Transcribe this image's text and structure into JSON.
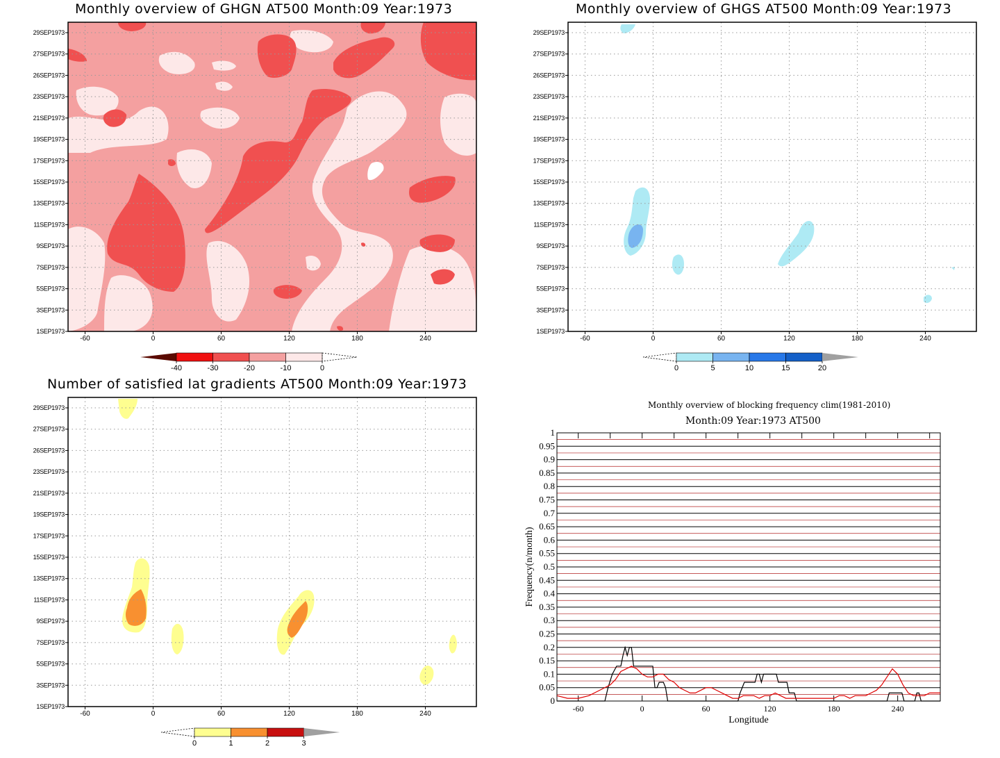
{
  "panels": {
    "ghgn": {
      "title": "Monthly overview of GHGN AT500 Month:09 Year:1973",
      "y_ticks": [
        "29SEP1973",
        "27SEP1973",
        "26SEP1973",
        "23SEP1973",
        "21SEP1973",
        "19SEP1973",
        "17SEP1973",
        "15SEP1973",
        "13SEP1973",
        "11SEP1973",
        "9SEP1973",
        "7SEP1973",
        "5SEP1973",
        "3SEP1973",
        "1SEP1973"
      ],
      "x_ticks": [
        "-60",
        "0",
        "60",
        "120",
        "180",
        "240"
      ],
      "colorbar": {
        "labels": [
          "-40",
          "-30",
          "-20",
          "-10",
          "0"
        ],
        "colors": [
          "#5a0a00",
          "#f01010",
          "#f05050",
          "#f4a0a0",
          "#fde8e8"
        ]
      }
    },
    "ghgs": {
      "title": "Monthly overview of GHGS AT500 Month:09 Year:1973",
      "y_ticks": [
        "29SEP1973",
        "27SEP1973",
        "26SEP1973",
        "23SEP1973",
        "21SEP1973",
        "19SEP1973",
        "17SEP1973",
        "15SEP1973",
        "13SEP1973",
        "11SEP1973",
        "9SEP1973",
        "7SEP1973",
        "5SEP1973",
        "3SEP1973",
        "1SEP1973"
      ],
      "x_ticks": [
        "-60",
        "0",
        "60",
        "120",
        "180",
        "240"
      ],
      "colorbar": {
        "labels": [
          "0",
          "5",
          "10",
          "15",
          "20"
        ],
        "colors": [
          "#aeeaf4",
          "#78b4f0",
          "#2878e8",
          "#1460c8",
          "#a0a0a0"
        ]
      }
    },
    "lat_gradients": {
      "title": "Number of satisfied lat gradients AT500 Month:09 Year:1973",
      "y_ticks": [
        "29SEP1973",
        "27SEP1973",
        "26SEP1973",
        "23SEP1973",
        "21SEP1973",
        "19SEP1973",
        "17SEP1973",
        "15SEP1973",
        "13SEP1973",
        "11SEP1973",
        "9SEP1973",
        "7SEP1973",
        "5SEP1973",
        "3SEP1973",
        "1SEP1973"
      ],
      "x_ticks": [
        "-60",
        "0",
        "60",
        "120",
        "180",
        "240"
      ],
      "colorbar": {
        "labels": [
          "0",
          "1",
          "2",
          "3"
        ],
        "colors": [
          "#fefe90",
          "#f89030",
          "#c81010",
          "#a0a0a0"
        ]
      }
    },
    "frequency": {
      "title": "Monthly overview of blocking frequency clim(1981-2010)",
      "subtitle": "Month:09 Year:1973  AT500"
    }
  },
  "chart_data": [
    {
      "type": "heatmap",
      "title": "Monthly overview of GHGN AT500 Month:09 Year:1973",
      "xlabel": "",
      "ylabel": "",
      "xlim": [
        -75,
        285
      ],
      "ylim": [
        "1SEP1973",
        "30SEP1973"
      ],
      "grid": true,
      "colorbar_levels": [
        -40,
        -30,
        -20,
        -10,
        0
      ],
      "dominant_ranges": [
        "-20 to -10",
        "-10 to 0",
        "-30 to -20"
      ]
    },
    {
      "type": "heatmap",
      "title": "Monthly overview of GHGS AT500 Month:09 Year:1973",
      "xlabel": "",
      "ylabel": "",
      "xlim": [
        -75,
        285
      ],
      "ylim": [
        "1SEP1973",
        "30SEP1973"
      ],
      "grid": true,
      "colorbar_levels": [
        0,
        5,
        10,
        15,
        20
      ],
      "features": [
        {
          "lon": -20,
          "date": "9-14SEP1973",
          "level": "0-10"
        },
        {
          "lon": 17,
          "date": "7SEP1973",
          "level": "0-5"
        },
        {
          "lon": 120,
          "date": "8-11SEP1973",
          "level": "0-5"
        },
        {
          "lon": -28,
          "date": "29-30SEP1973",
          "level": "0-5"
        },
        {
          "lon": 235,
          "date": "4SEP1973",
          "level": "0-5"
        }
      ]
    },
    {
      "type": "heatmap",
      "title": "Number of satisfied lat gradients AT500 Month:09 Year:1973",
      "xlabel": "",
      "ylabel": "",
      "xlim": [
        -75,
        285
      ],
      "ylim": [
        "1SEP1973",
        "30SEP1973"
      ],
      "grid": true,
      "colorbar_levels": [
        0,
        1,
        2,
        3
      ],
      "features": [
        {
          "lon": -20,
          "date": "9-15SEP1973",
          "level": "1-2"
        },
        {
          "lon": 17,
          "date": "7SEP1973",
          "level": "0-1"
        },
        {
          "lon": 120,
          "date": "8-11SEP1973",
          "level": "1-2"
        },
        {
          "lon": -25,
          "date": "29-30SEP1973",
          "level": "0-1"
        },
        {
          "lon": 236,
          "date": "4SEP1973",
          "level": "0-1"
        },
        {
          "lon": 258,
          "date": "7SEP1973",
          "level": "0-1"
        }
      ]
    },
    {
      "type": "line",
      "title": "Monthly overview of blocking frequency clim(1981-2010)",
      "subtitle": "Month:09 Year:1973  AT500",
      "xlabel": "Longitude",
      "ylabel": "Frequency(n/month)",
      "xlim": [
        -80,
        280
      ],
      "ylim": [
        0,
        1
      ],
      "x_ticks": [
        "-60",
        "0",
        "60",
        "120",
        "180",
        "240"
      ],
      "y_ticks": [
        "0",
        "0.05",
        "0.1",
        "0.15",
        "0.2",
        "0.25",
        "0.3",
        "0.35",
        "0.4",
        "0.45",
        "0.5",
        "0.55",
        "0.6",
        "0.65",
        "0.7",
        "0.75",
        "0.8",
        "0.85",
        "0.9",
        "0.95",
        "1"
      ],
      "series": [
        {
          "color": "#000000",
          "x": [
            -80,
            -35,
            -32,
            -28,
            -24,
            -22,
            -20,
            -18,
            -16,
            -14,
            -12,
            -10,
            -8,
            10,
            12,
            14,
            16,
            18,
            20,
            22,
            24,
            90,
            92,
            96,
            100,
            104,
            106,
            108,
            110,
            112,
            114,
            116,
            120,
            124,
            126,
            128,
            130,
            132,
            134,
            136,
            138,
            140,
            143,
            145,
            230,
            232,
            234,
            236,
            238,
            240,
            242,
            244,
            246,
            248,
            250,
            252,
            254,
            256,
            258,
            260,
            262,
            280
          ],
          "y": [
            0,
            0,
            0.05,
            0.1,
            0.13,
            0.13,
            0.13,
            0.17,
            0.2,
            0.17,
            0.2,
            0.2,
            0.13,
            0.13,
            0.05,
            0.05,
            0.07,
            0.07,
            0.07,
            0.05,
            0,
            0,
            0.03,
            0.07,
            0.07,
            0.07,
            0.07,
            0.1,
            0.1,
            0.07,
            0.1,
            0.1,
            0.1,
            0.1,
            0.1,
            0.07,
            0.07,
            0.07,
            0.07,
            0.07,
            0.03,
            0.03,
            0.03,
            0,
            0,
            0.03,
            0.03,
            0.03,
            0.03,
            0.03,
            0.03,
            0.03,
            0,
            0,
            0,
            0,
            0,
            0,
            0.03,
            0.03,
            0,
            0
          ]
        },
        {
          "color": "#e00000",
          "x": [
            -80,
            -70,
            -60,
            -50,
            -40,
            -30,
            -25,
            -20,
            -15,
            -10,
            -5,
            0,
            5,
            10,
            15,
            20,
            25,
            30,
            35,
            40,
            45,
            50,
            55,
            60,
            65,
            70,
            75,
            80,
            85,
            90,
            95,
            100,
            105,
            110,
            115,
            120,
            125,
            130,
            135,
            140,
            145,
            150,
            155,
            160,
            165,
            170,
            175,
            180,
            185,
            190,
            195,
            200,
            205,
            210,
            215,
            220,
            225,
            230,
            235,
            240,
            245,
            250,
            255,
            260,
            265,
            270,
            275,
            280
          ],
          "y": [
            0.02,
            0.01,
            0.01,
            0.02,
            0.04,
            0.06,
            0.08,
            0.11,
            0.12,
            0.13,
            0.12,
            0.1,
            0.09,
            0.09,
            0.1,
            0.1,
            0.08,
            0.07,
            0.05,
            0.04,
            0.03,
            0.03,
            0.04,
            0.05,
            0.05,
            0.04,
            0.03,
            0.02,
            0.01,
            0.01,
            0.02,
            0.02,
            0.02,
            0.01,
            0.02,
            0.02,
            0.03,
            0.02,
            0.01,
            0.01,
            0.01,
            0.01,
            0.01,
            0.01,
            0.01,
            0.01,
            0.01,
            0.01,
            0.02,
            0.02,
            0.01,
            0.02,
            0.02,
            0.02,
            0.03,
            0.04,
            0.06,
            0.09,
            0.12,
            0.1,
            0.06,
            0.03,
            0.02,
            0.02,
            0.02,
            0.03,
            0.03,
            0.03
          ]
        }
      ],
      "climatology_color": "#b02020"
    }
  ]
}
